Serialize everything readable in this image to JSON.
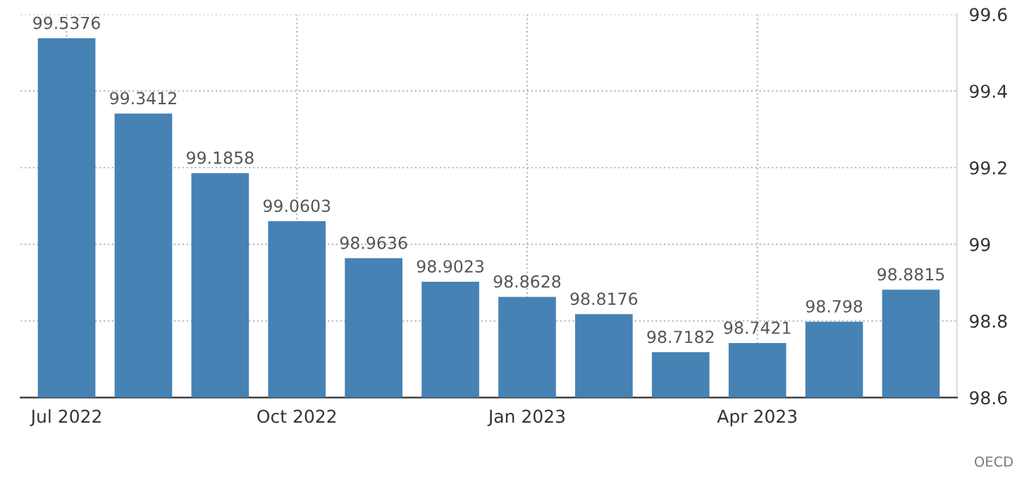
{
  "chart_data": {
    "type": "bar",
    "categories": [
      "Jul 2022",
      null,
      null,
      "Oct 2022",
      null,
      null,
      "Jan 2023",
      null,
      null,
      "Apr 2023",
      null,
      null
    ],
    "values": [
      99.5376,
      99.3412,
      99.1858,
      99.0603,
      98.9636,
      98.9023,
      98.8628,
      98.8176,
      98.7182,
      98.7421,
      98.798,
      98.8815
    ],
    "color": "#4682b4",
    "ylim": [
      98.6,
      99.6
    ],
    "yticks": [
      98.6,
      98.8,
      99,
      99.2,
      99.4,
      99.6
    ],
    "grid": true,
    "data_labels": true,
    "annotations": [
      "OECD"
    ]
  }
}
